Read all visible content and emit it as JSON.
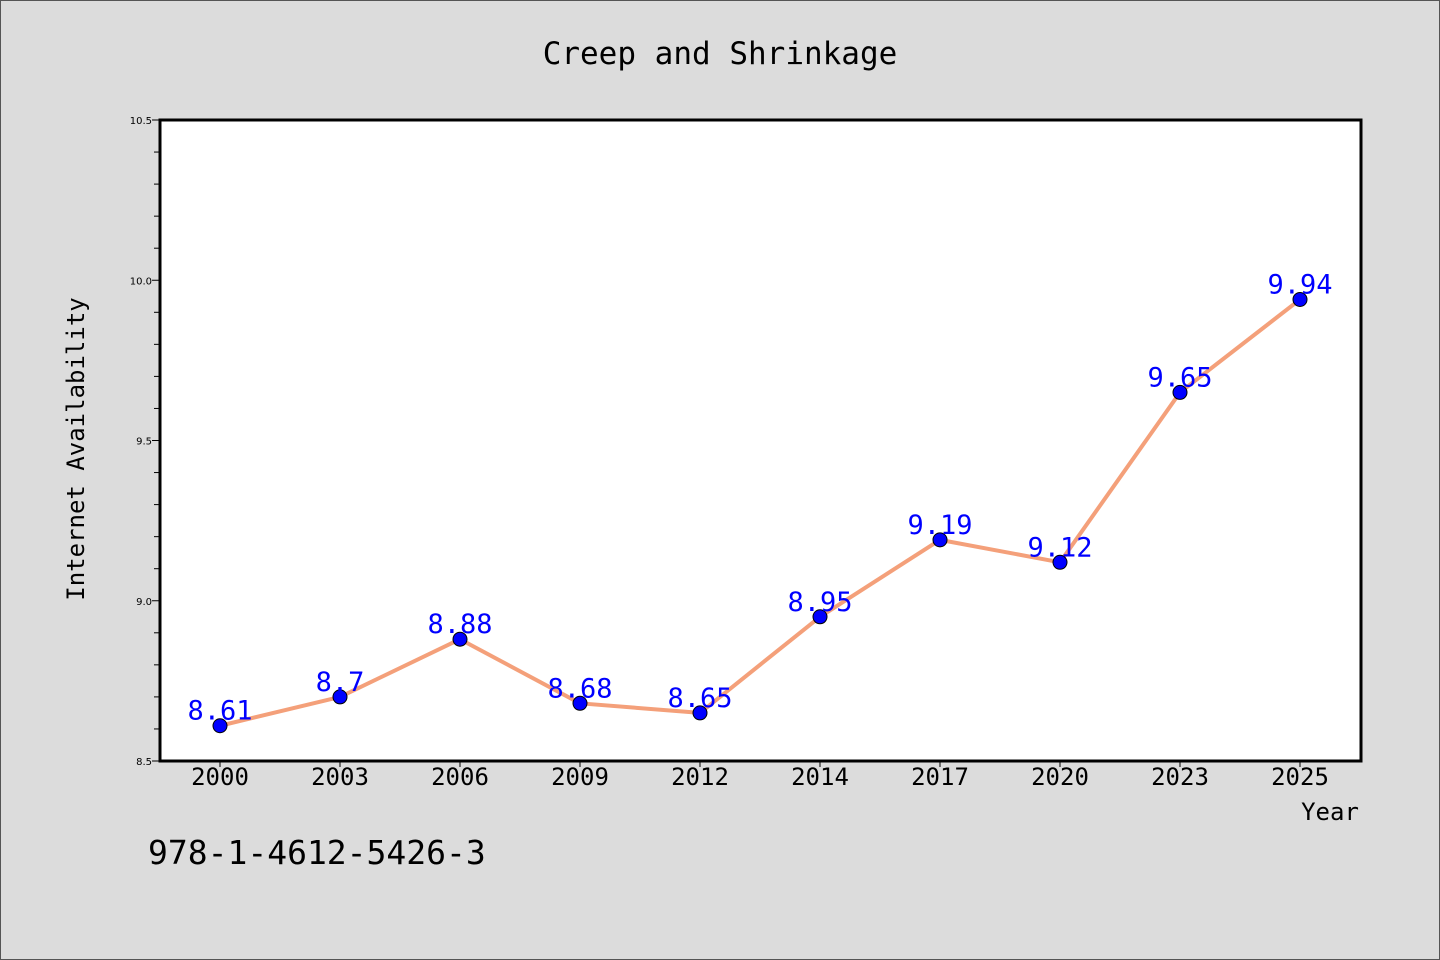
{
  "chart_data": {
    "type": "line",
    "title": "Creep and Shrinkage",
    "xlabel": "Year",
    "ylabel": "Internet Availability",
    "categories": [
      "2000",
      "2003",
      "2006",
      "2009",
      "2012",
      "2014",
      "2017",
      "2020",
      "2023",
      "2025"
    ],
    "values": [
      8.61,
      8.7,
      8.88,
      8.68,
      8.65,
      8.95,
      9.19,
      9.12,
      9.65,
      9.94
    ],
    "data_labels": [
      "8.61",
      "8.7",
      "8.88",
      "8.68",
      "8.65",
      "8.95",
      "9.19",
      "9.12",
      "9.65",
      "9.94"
    ],
    "ylim": [
      8.5,
      10.5
    ],
    "yticks": [
      "8.5",
      "9.0",
      "9.5",
      "10.0",
      "10.5"
    ],
    "grid": false,
    "colors": {
      "line": "#f4a07a",
      "marker": "#0000ff",
      "labels": "#0000ff",
      "plot_background": "#ffffff",
      "page_background": "#dcdcdc"
    }
  },
  "footnote": "978-1-4612-5426-3"
}
